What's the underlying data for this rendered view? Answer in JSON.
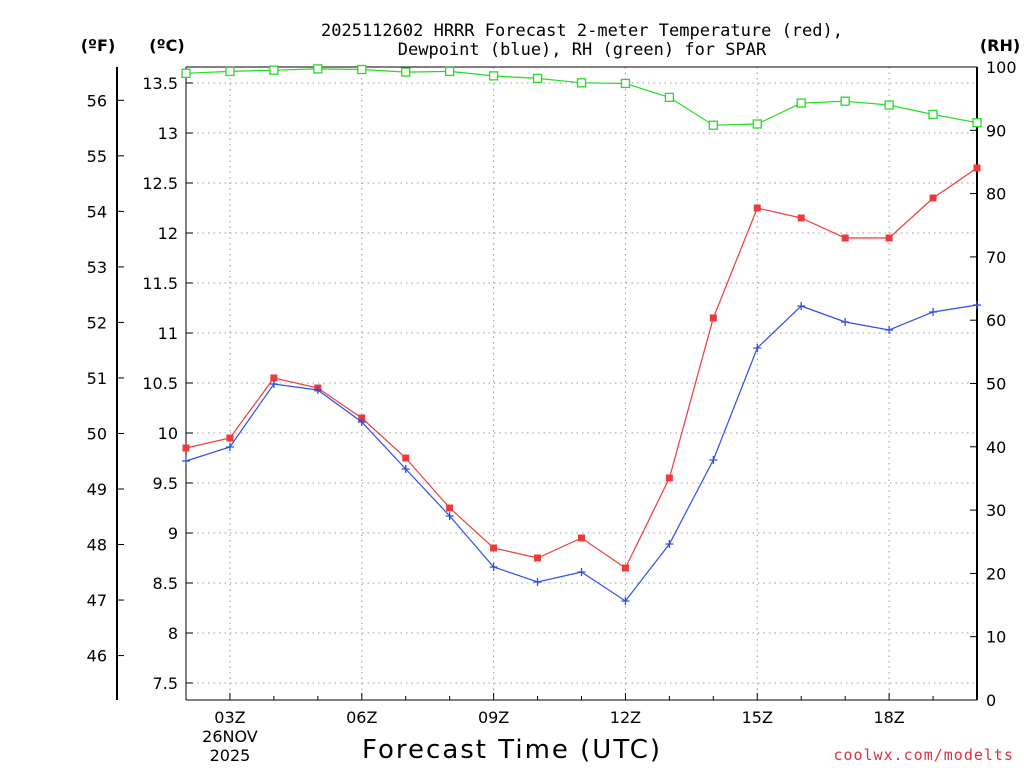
{
  "chart_data": {
    "type": "line",
    "title_line1": "2025112602 HRRR Forecast 2-meter Temperature (red),",
    "title_line2": "Dewpoint (blue), RH (green) for SPAR",
    "xlabel": "Forecast Time (UTC)",
    "credit": "coolwx.com/modelts",
    "unit_f": "(ºF)",
    "unit_c": "(ºC)",
    "unit_rh": "(RH)",
    "x": [
      2,
      3,
      4,
      5,
      6,
      7,
      8,
      9,
      10,
      11,
      12,
      13,
      14,
      15,
      16,
      17,
      18,
      19,
      20
    ],
    "xlim": [
      2,
      20
    ],
    "x_ticks": [
      {
        "x": 3,
        "label": "03Z",
        "sub1": "26NOV",
        "sub2": "2025"
      },
      {
        "x": 6,
        "label": "06Z"
      },
      {
        "x": 9,
        "label": "09Z"
      },
      {
        "x": 12,
        "label": "12Z"
      },
      {
        "x": 15,
        "label": "15Z"
      },
      {
        "x": 18,
        "label": "18Z"
      }
    ],
    "ylim_c": [
      7.33,
      13.66
    ],
    "y_ticks_c": [
      "7.5",
      "8",
      "8.5",
      "9",
      "9.5",
      "10",
      "10.5",
      "11",
      "11.5",
      "12",
      "12.5",
      "13",
      "13.5"
    ],
    "ylim_f": [
      45.2,
      56.6
    ],
    "y_ticks_f": [
      "46",
      "47",
      "48",
      "49",
      "50",
      "51",
      "52",
      "53",
      "54",
      "55",
      "56"
    ],
    "ylim_rh": [
      0,
      100
    ],
    "y_ticks_rh": [
      "0",
      "10",
      "20",
      "30",
      "40",
      "50",
      "60",
      "70",
      "80",
      "90",
      "100"
    ],
    "colors": {
      "temperature": "#ee3a3a",
      "dewpoint": "#2f4ee8",
      "rh": "#22dd22",
      "grid": "#9a9a9a",
      "axis": "#000000",
      "credit": "#e0303a"
    },
    "series": [
      {
        "name": "Temperature",
        "axis": "C",
        "marker": "filled-square",
        "values": [
          9.85,
          9.95,
          10.55,
          10.45,
          10.15,
          9.75,
          9.25,
          8.85,
          8.75,
          8.95,
          8.65,
          9.55,
          11.15,
          12.25,
          12.15,
          11.95,
          11.95,
          12.35,
          12.65
        ]
      },
      {
        "name": "Dewpoint",
        "axis": "C",
        "marker": "plus",
        "values": [
          9.72,
          9.86,
          10.49,
          10.43,
          10.11,
          9.64,
          9.17,
          8.66,
          8.51,
          8.61,
          8.32,
          8.89,
          9.73,
          10.85,
          11.27,
          11.11,
          11.03,
          11.21,
          11.28
        ]
      },
      {
        "name": "RH",
        "axis": "RH",
        "marker": "open-square",
        "values": [
          99,
          99.3,
          99.5,
          99.7,
          99.6,
          99.2,
          99.3,
          98.6,
          98.2,
          97.5,
          97.4,
          95.2,
          90.8,
          91.0,
          94.3,
          94.6,
          94.0,
          92.5,
          91.2
        ]
      }
    ]
  }
}
